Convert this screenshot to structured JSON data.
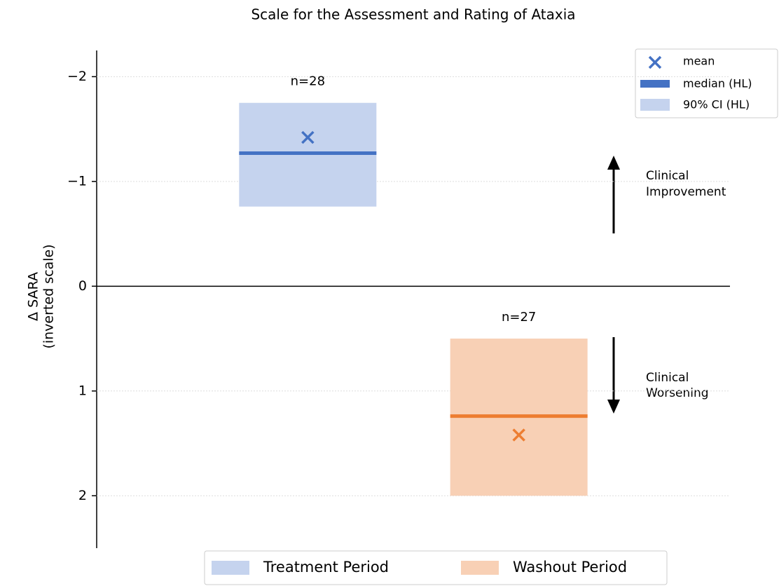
{
  "chart_data": {
    "type": "interval",
    "title": "Scale for the Assessment and Rating of Ataxia",
    "ylabel": [
      "Δ SARA",
      "(inverted scale)"
    ],
    "ylim": [
      -2.25,
      2.5
    ],
    "inverted": true,
    "yticks": [
      {
        "value": -2,
        "label": "−2"
      },
      {
        "value": -1,
        "label": "−1"
      },
      0,
      1,
      2
    ],
    "grid": true,
    "series": [
      {
        "name": "Treatment Period",
        "color": "#4472c4",
        "fill": "#c5d3ee",
        "n_label": "n=28",
        "mean": -1.42,
        "median": -1.27,
        "ci_low": -1.75,
        "ci_high": -0.76
      },
      {
        "name": "Washout Period",
        "color": "#ed7d31",
        "fill": "#f8d0b5",
        "n_label": "n=27",
        "mean": 1.42,
        "median": 1.24,
        "ci_low": 0.5,
        "ci_high": 2.0
      }
    ],
    "marker_legend": [
      "mean",
      "median (HL)",
      "90% CI (HL)"
    ],
    "annotations": [
      [
        "Clinical",
        "Improvement"
      ],
      [
        "Clinical",
        "Worsening"
      ]
    ]
  }
}
